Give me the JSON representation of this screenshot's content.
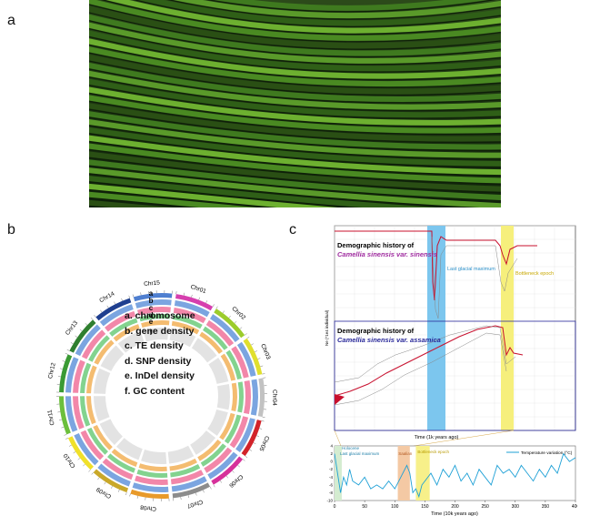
{
  "panels": {
    "a": "a",
    "b": "b",
    "c": "c"
  },
  "circos": {
    "chromosomes": [
      "Chr01",
      "Chr02",
      "Chr03",
      "Chr04",
      "Chr05",
      "Chr06",
      "Chr07",
      "Chr08",
      "Chr09",
      "Chr10",
      "Chr11",
      "Chr12",
      "Chr13",
      "Chr14",
      "Chr15"
    ],
    "chrom_colors": [
      "#d63fae",
      "#9ccc2c",
      "#e0df2e",
      "#c2c2c2",
      "#d2232a",
      "#d6319a",
      "#8c8c8c",
      "#e89a2a",
      "#c9a82a",
      "#f0e02a",
      "#6cbf3c",
      "#3a9a34",
      "#2f7f2f",
      "#1f3f8f",
      "#4f7fd0"
    ],
    "track_letters": [
      "a",
      "b",
      "c",
      "d",
      "e",
      "f"
    ],
    "legend": [
      "a. chromosome",
      "b. gene density",
      "c. TE density",
      "d. SNP density",
      "e. InDel density",
      "f. GC content"
    ]
  },
  "demography": {
    "label_sinensis_1": "Demographic history of",
    "label_sinensis_2": "Camellia sinensis var. sinensis",
    "label_assamica_1": "Demographic history of",
    "label_assamica_2": "Camellia sinensis var. assamica",
    "lgm_label": "Last glacial maximum",
    "bottleneck_label": "Bottleneck epoch",
    "ylabel": "Ne (*1e4 individual)",
    "xlabel": "Time (1k years ago)",
    "colors": {
      "sinensis_label": "#a02ca0",
      "assamica_label": "#2a2a9a",
      "blue_band": "#7cc6ee",
      "yellow_band": "#f6ef7c",
      "red": "#c8102e"
    }
  },
  "temperature": {
    "legend": "Temperature variation (°C)",
    "xlabel": "Time (10k years ago)",
    "x_ticks": [
      "0",
      "50",
      "100",
      "150",
      "200",
      "250",
      "300",
      "350",
      "400"
    ],
    "y_ticks": [
      "4",
      "2",
      "0",
      "-2",
      "-4",
      "-6",
      "-8",
      "-10"
    ],
    "annotations": [
      "Holocene",
      "Last glacial maximum",
      "Saalian",
      "Bottleneck epoch"
    ],
    "chart_data": {
      "type": "line",
      "xlabel": "Time (10k years ago)",
      "ylabel": "",
      "xlim": [
        0,
        400
      ],
      "ylim": [
        -10,
        4
      ],
      "series": [
        {
          "name": "Temperature variation (°C)",
          "x": [
            0,
            5,
            10,
            15,
            20,
            25,
            30,
            40,
            50,
            60,
            70,
            80,
            90,
            100,
            110,
            120,
            125,
            130,
            135,
            140,
            145,
            150,
            160,
            170,
            180,
            190,
            200,
            210,
            220,
            230,
            240,
            250,
            260,
            270,
            280,
            290,
            300,
            310,
            320,
            330,
            340,
            350,
            360,
            370,
            380,
            390,
            400
          ],
          "y": [
            2,
            -3,
            -8,
            -4,
            -6,
            -2,
            -5,
            -6,
            -4,
            -7,
            -6,
            -7,
            -5,
            -7,
            -4,
            -1,
            -3,
            -8,
            -7,
            -9,
            -6,
            -5,
            -3,
            -6,
            -2,
            -4,
            -1,
            -5,
            -3,
            -6,
            -2,
            -4,
            -6,
            -1,
            -3,
            -2,
            -4,
            -1,
            -3,
            -5,
            -2,
            -4,
            -1,
            -3,
            2,
            0,
            1
          ]
        }
      ]
    }
  }
}
